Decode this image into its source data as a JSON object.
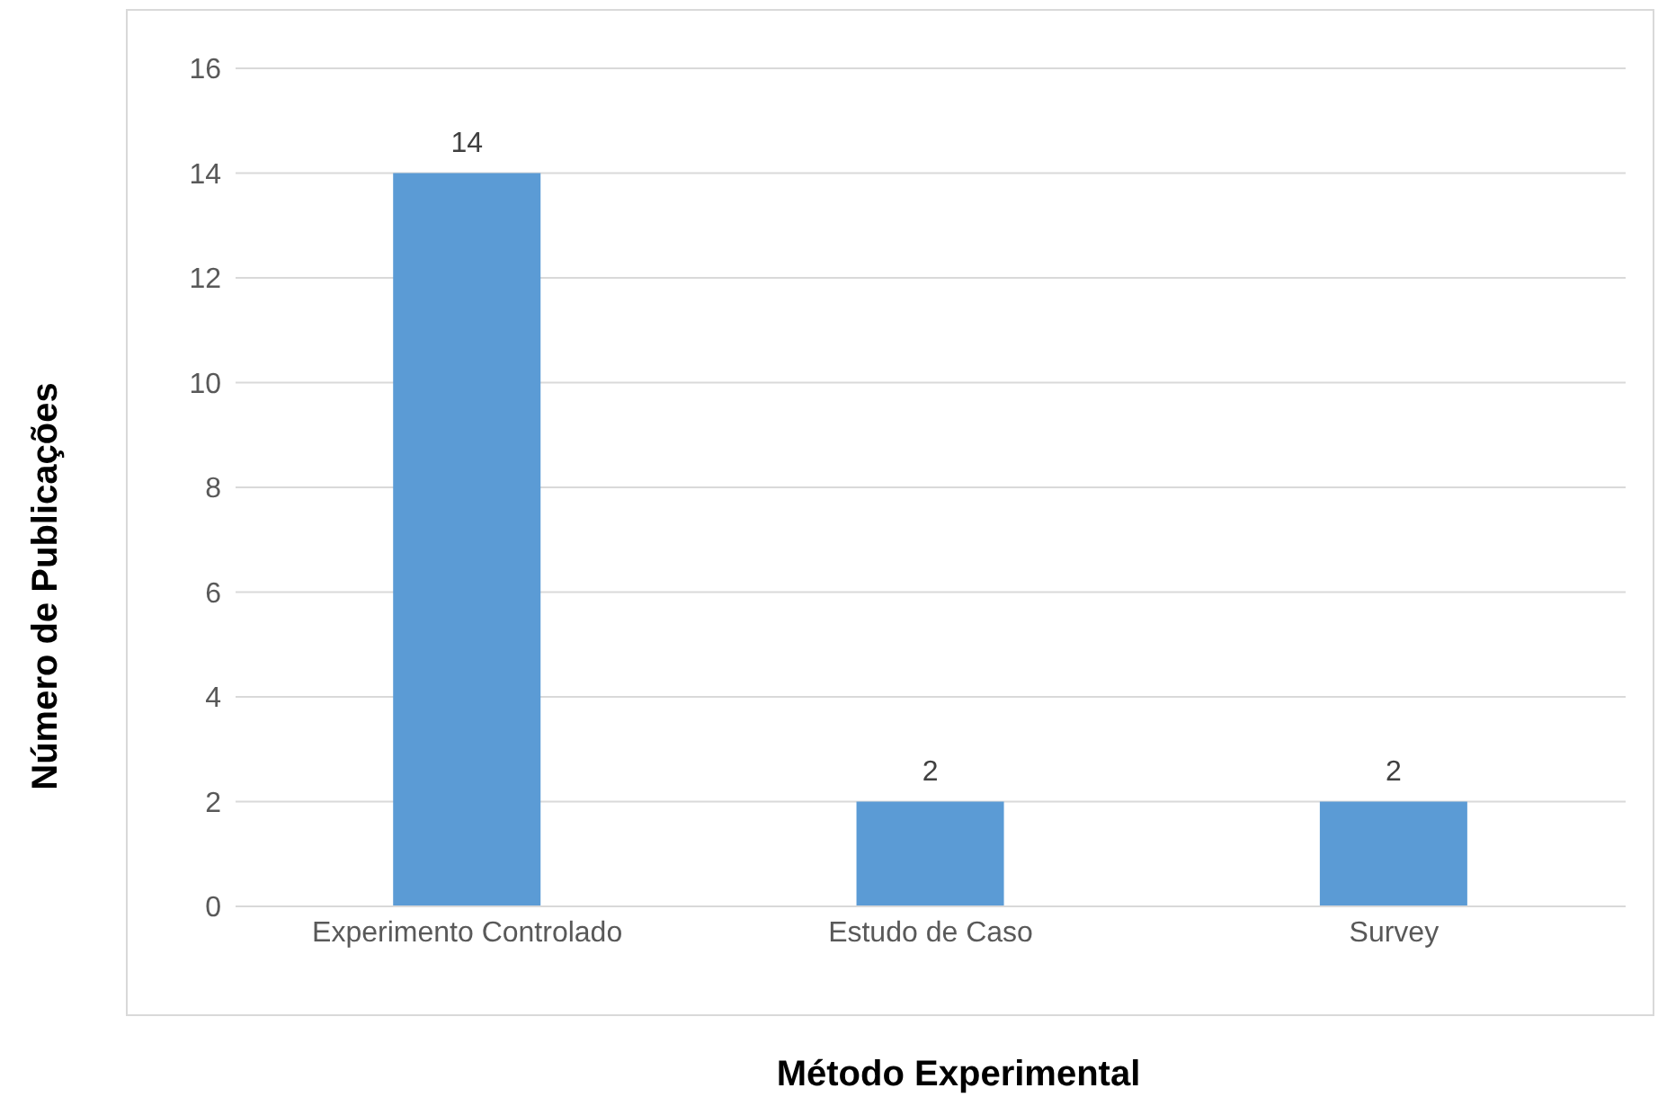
{
  "chart_data": {
    "type": "bar",
    "xlabel": "Método Experimental",
    "ylabel": "Número de Publicações",
    "categories": [
      "Experimento Controlado",
      "Estudo de Caso",
      "Survey"
    ],
    "values": [
      14,
      2,
      2
    ],
    "color": "#5b9bd5",
    "ylim": [
      0,
      16
    ],
    "yticks": [
      0,
      2,
      4,
      6,
      8,
      10,
      12,
      14,
      16
    ],
    "grid": "y",
    "data_labels": true
  }
}
